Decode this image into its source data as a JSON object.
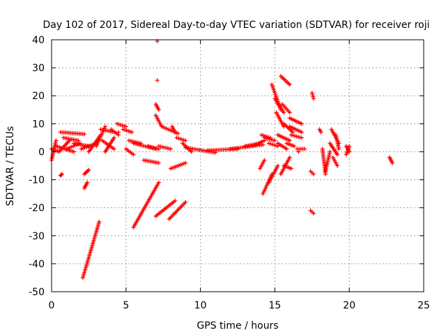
{
  "chart_data": {
    "type": "scatter",
    "title": "Day 102 of 2017, Sidereal Day-to-day VTEC variation (SDTVAR) for receiver roji",
    "xlabel": "GPS time / hours",
    "ylabel": "SDTVAR / TECUs",
    "xlim": [
      0,
      25
    ],
    "ylim": [
      -50,
      40
    ],
    "xticks": [
      "0",
      "5",
      "10",
      "15",
      "20",
      "25"
    ],
    "yticks": [
      "-50",
      "-40",
      "-30",
      "-20",
      "-10",
      "0",
      "10",
      "20",
      "30",
      "40"
    ],
    "grid": true,
    "marker": "plus",
    "color": "#ff0000",
    "segments": [
      {
        "x0": 0.0,
        "y0": -3,
        "x1": 0.3,
        "y1": 4
      },
      {
        "x0": 0.0,
        "y0": 1,
        "x1": 0.5,
        "y1": 0
      },
      {
        "x0": 0.3,
        "y0": 2,
        "x1": 1.5,
        "y1": 0
      },
      {
        "x0": 0.5,
        "y0": 0,
        "x1": 1.2,
        "y1": 4
      },
      {
        "x0": 0.6,
        "y0": 7,
        "x1": 2.2,
        "y1": 6.3
      },
      {
        "x0": 0.6,
        "y0": -8.5,
        "x1": 0.7,
        "y1": -8
      },
      {
        "x0": 0.8,
        "y0": 5,
        "x1": 1.8,
        "y1": 4
      },
      {
        "x0": 1.0,
        "y0": 1,
        "x1": 1.9,
        "y1": 3
      },
      {
        "x0": 1.5,
        "y0": 3,
        "x1": 2.5,
        "y1": 2
      },
      {
        "x0": 2.0,
        "y0": 1,
        "x1": 3.0,
        "y1": 3
      },
      {
        "x0": 2.2,
        "y0": -8,
        "x1": 2.5,
        "y1": -6.5
      },
      {
        "x0": 2.2,
        "y0": -13,
        "x1": 2.4,
        "y1": -11
      },
      {
        "x0": 2.1,
        "y0": -45,
        "x1": 3.2,
        "y1": -25
      },
      {
        "x0": 2.5,
        "y0": 0,
        "x1": 3.3,
        "y1": 6
      },
      {
        "x0": 3.0,
        "y0": 2,
        "x1": 3.6,
        "y1": 9
      },
      {
        "x0": 3.3,
        "y0": 8,
        "x1": 4.2,
        "y1": 7
      },
      {
        "x0": 3.4,
        "y0": 4,
        "x1": 4.2,
        "y1": 1
      },
      {
        "x0": 3.6,
        "y0": 0,
        "x1": 4.2,
        "y1": 5
      },
      {
        "x0": 4.0,
        "y0": 8,
        "x1": 4.5,
        "y1": 6
      },
      {
        "x0": 4.4,
        "y0": 10,
        "x1": 5.0,
        "y1": 9
      },
      {
        "x0": 4.8,
        "y0": 8,
        "x1": 5.4,
        "y1": 7
      },
      {
        "x0": 5.0,
        "y0": 1,
        "x1": 5.5,
        "y1": -1
      },
      {
        "x0": 5.2,
        "y0": 4,
        "x1": 6.0,
        "y1": 3
      },
      {
        "x0": 5.5,
        "y0": 3,
        "x1": 7.0,
        "y1": 1
      },
      {
        "x0": 5.5,
        "y0": -27,
        "x1": 7.2,
        "y1": -11
      },
      {
        "x0": 6.2,
        "y0": -3,
        "x1": 7.2,
        "y1": -4
      },
      {
        "x0": 6.5,
        "y0": 2,
        "x1": 7.2,
        "y1": 1
      },
      {
        "x0": 7.0,
        "y0": -23,
        "x1": 8.3,
        "y1": -17.5
      },
      {
        "x0": 7.0,
        "y0": 17,
        "x1": 7.2,
        "y1": 15
      },
      {
        "x0": 7.0,
        "y0": 13,
        "x1": 7.4,
        "y1": 9
      },
      {
        "x0": 7.2,
        "y0": 2,
        "x1": 8.0,
        "y1": 1
      },
      {
        "x0": 7.4,
        "y0": 9,
        "x1": 8.5,
        "y1": 6.5
      },
      {
        "x0": 7.9,
        "y0": -24,
        "x1": 9.0,
        "y1": -18
      },
      {
        "x0": 8.0,
        "y0": -6,
        "x1": 9.0,
        "y1": -4
      },
      {
        "x0": 8.1,
        "y0": 9,
        "x1": 8.3,
        "y1": 7
      },
      {
        "x0": 8.4,
        "y0": 5,
        "x1": 9.0,
        "y1": 4
      },
      {
        "x0": 8.8,
        "y0": 3,
        "x1": 9.4,
        "y1": 0
      },
      {
        "x0": 9.0,
        "y0": 1.5,
        "x1": 11.0,
        "y1": -0.3
      },
      {
        "x0": 10.5,
        "y0": 0.5,
        "x1": 12.5,
        "y1": 1
      },
      {
        "x0": 12.0,
        "y0": 1,
        "x1": 14.2,
        "y1": 2.5
      },
      {
        "x0": 13.0,
        "y0": 2,
        "x1": 14.0,
        "y1": 3
      },
      {
        "x0": 13.5,
        "y0": 2,
        "x1": 14.3,
        "y1": 4
      },
      {
        "x0": 14.0,
        "y0": -6,
        "x1": 14.3,
        "y1": -3
      },
      {
        "x0": 14.2,
        "y0": -15,
        "x1": 14.8,
        "y1": -8
      },
      {
        "x0": 14.1,
        "y0": 6,
        "x1": 14.7,
        "y1": 5
      },
      {
        "x0": 14.3,
        "y0": 5,
        "x1": 15.0,
        "y1": 4
      },
      {
        "x0": 14.6,
        "y0": 3,
        "x1": 15.2,
        "y1": 2
      },
      {
        "x0": 14.6,
        "y0": -11,
        "x1": 15.2,
        "y1": -5
      },
      {
        "x0": 14.8,
        "y0": 24,
        "x1": 15.4,
        "y1": 15
      },
      {
        "x0": 15.0,
        "y0": 19,
        "x1": 15.6,
        "y1": 14
      },
      {
        "x0": 15.1,
        "y0": 14,
        "x1": 15.6,
        "y1": 9
      },
      {
        "x0": 15.2,
        "y0": 3,
        "x1": 15.8,
        "y1": 1
      },
      {
        "x0": 15.2,
        "y0": 6,
        "x1": 16.0,
        "y1": 4
      },
      {
        "x0": 15.4,
        "y0": -8,
        "x1": 16.0,
        "y1": -2
      },
      {
        "x0": 15.4,
        "y0": 27,
        "x1": 16.0,
        "y1": 24
      },
      {
        "x0": 15.5,
        "y0": 17,
        "x1": 16.0,
        "y1": 14
      },
      {
        "x0": 15.6,
        "y0": -5,
        "x1": 16.1,
        "y1": -6
      },
      {
        "x0": 15.6,
        "y0": 10,
        "x1": 16.2,
        "y1": 7
      },
      {
        "x0": 15.8,
        "y0": 3,
        "x1": 16.3,
        "y1": 2
      },
      {
        "x0": 16.0,
        "y0": 12,
        "x1": 16.8,
        "y1": 10
      },
      {
        "x0": 16.0,
        "y0": 9,
        "x1": 16.8,
        "y1": 7
      },
      {
        "x0": 16.1,
        "y0": 6,
        "x1": 16.8,
        "y1": 5
      },
      {
        "x0": 16.5,
        "y0": 1,
        "x1": 17.0,
        "y1": 1
      },
      {
        "x0": 17.5,
        "y0": 21,
        "x1": 17.6,
        "y1": 19
      },
      {
        "x0": 17.4,
        "y0": -7,
        "x1": 17.6,
        "y1": -8
      },
      {
        "x0": 17.4,
        "y0": -21,
        "x1": 17.6,
        "y1": -22
      },
      {
        "x0": 18.0,
        "y0": 8,
        "x1": 18.1,
        "y1": 7
      },
      {
        "x0": 18.2,
        "y0": 1,
        "x1": 18.4,
        "y1": -8
      },
      {
        "x0": 18.4,
        "y0": -7,
        "x1": 18.7,
        "y1": 0
      },
      {
        "x0": 18.8,
        "y0": 8,
        "x1": 19.3,
        "y1": 3
      },
      {
        "x0": 18.7,
        "y0": 3,
        "x1": 19.2,
        "y1": -1
      },
      {
        "x0": 18.9,
        "y0": -2,
        "x1": 19.2,
        "y1": -5
      },
      {
        "x0": 19.1,
        "y0": 6,
        "x1": 19.3,
        "y1": 1
      },
      {
        "x0": 19.8,
        "y0": 2,
        "x1": 20.0,
        "y1": 0
      },
      {
        "x0": 19.8,
        "y0": -1,
        "x1": 20.0,
        "y1": 2
      },
      {
        "x0": 22.7,
        "y0": -2,
        "x1": 22.9,
        "y1": -4
      }
    ],
    "points": [
      {
        "x": 7.1,
        "y": 39.5
      },
      {
        "x": 7.1,
        "y": 25.5
      },
      {
        "x": 4.5,
        "y": 7.0
      },
      {
        "x": 15.2,
        "y": 17.0
      },
      {
        "x": 16.6,
        "y": 0.0
      }
    ]
  }
}
